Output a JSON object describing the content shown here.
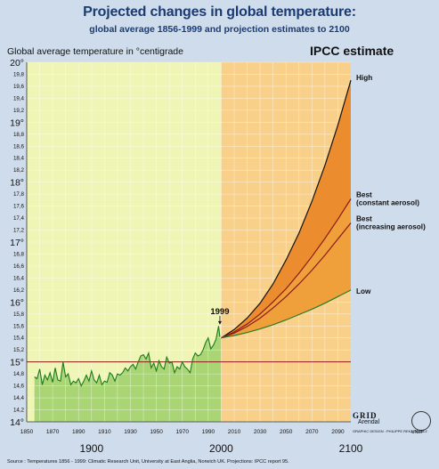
{
  "header": {
    "title": "Projected changes in global temperature:",
    "subtitle": "global average 1856-1999 and projection estimates to 2100",
    "ylabel": "Global average temperature in °centigrade",
    "ipcc_label": "IPCC estimate"
  },
  "footer": {
    "source": "Source : Temperatures 1856 - 1999: Climatic Research Unit, University at East Anglia, Norwich UK. Projections: IPCC report 95."
  },
  "logo": {
    "grid": "GRID",
    "arendal": "Arendal",
    "unep": "UNEP",
    "design": "GRAPHIC DESIGN : PHILIPPE REKACEWICZ"
  },
  "colors": {
    "page_bg": "#cfdcec",
    "historical_bg": "#eff5b4",
    "historical_fill": "#a9d575",
    "historical_line": "#1d7a1d",
    "projection_bg": "#f9d08a",
    "projection_fan": "#f0a03a",
    "projection_fan_upper": "#e8842a",
    "baseline": "#8b1a1a",
    "high_line": "#111111",
    "best_lines": "#8b1a1a",
    "low_line": "#2a7a2a"
  },
  "chart_data": {
    "type": "line",
    "xlabel": "",
    "ylabel": "Global average temperature in °centigrade",
    "xlim": [
      1850,
      2100
    ],
    "ylim": [
      14,
      20
    ],
    "baseline": 15.0,
    "yticks": [
      14,
      14.2,
      14.4,
      14.6,
      14.8,
      15,
      15.2,
      15.4,
      15.6,
      15.8,
      16,
      16.2,
      16.4,
      16.6,
      16.8,
      17,
      17.2,
      17.4,
      17.6,
      17.8,
      18,
      18.2,
      18.4,
      18.6,
      18.8,
      19,
      19.2,
      19.4,
      19.6,
      19.8,
      20
    ],
    "ytick_labels": [
      "14°",
      "14,2",
      "14,4",
      "14,6",
      "14,8",
      "15°",
      "15,2",
      "15,4",
      "15,6",
      "15,8",
      "16°",
      "16,2",
      "16,4",
      "16,6",
      "16,8",
      "17°",
      "17,2",
      "17,4",
      "17,6",
      "17,8",
      "18°",
      "18,2",
      "18,4",
      "18,6",
      "18,8",
      "19°",
      "19,2",
      "19,4",
      "19,6",
      "19,8",
      "20°"
    ],
    "xticks_minor": [
      1850,
      1870,
      1890,
      1910,
      1930,
      1950,
      1970,
      1990,
      2010,
      2030,
      2050,
      2070,
      2090
    ],
    "xticks_major": [
      1900,
      2000,
      2100
    ],
    "annotation": {
      "text": "1999",
      "x": 1999,
      "y": 15.62
    },
    "series": [
      {
        "name": "",
        "role": "historical",
        "x": [
          1856,
          1858,
          1860,
          1862,
          1864,
          1866,
          1868,
          1870,
          1872,
          1874,
          1876,
          1878,
          1880,
          1882,
          1884,
          1886,
          1888,
          1890,
          1892,
          1894,
          1896,
          1898,
          1900,
          1902,
          1904,
          1906,
          1908,
          1910,
          1912,
          1914,
          1916,
          1918,
          1920,
          1922,
          1924,
          1926,
          1928,
          1930,
          1932,
          1934,
          1936,
          1938,
          1940,
          1942,
          1944,
          1946,
          1948,
          1950,
          1952,
          1954,
          1956,
          1958,
          1960,
          1962,
          1964,
          1966,
          1968,
          1970,
          1972,
          1974,
          1976,
          1978,
          1980,
          1982,
          1984,
          1986,
          1988,
          1990,
          1992,
          1994,
          1996,
          1998,
          1999
        ],
        "y": [
          14.75,
          14.72,
          14.88,
          14.62,
          14.78,
          14.7,
          14.82,
          14.66,
          14.9,
          14.7,
          14.68,
          15.0,
          14.75,
          14.8,
          14.62,
          14.68,
          14.65,
          14.72,
          14.6,
          14.68,
          14.78,
          14.68,
          14.85,
          14.7,
          14.65,
          14.78,
          14.62,
          14.68,
          14.66,
          14.82,
          14.78,
          14.68,
          14.8,
          14.78,
          14.82,
          14.9,
          14.85,
          14.92,
          14.96,
          14.88,
          15.0,
          15.1,
          15.12,
          15.05,
          15.15,
          14.9,
          14.98,
          14.85,
          15.02,
          14.92,
          14.88,
          15.08,
          14.98,
          15.0,
          14.82,
          14.92,
          14.88,
          15.0,
          14.92,
          14.88,
          14.82,
          15.05,
          15.15,
          15.1,
          15.12,
          15.2,
          15.32,
          15.4,
          15.22,
          15.28,
          15.38,
          15.6,
          15.42
        ]
      },
      {
        "name": "High",
        "role": "projection",
        "x": [
          2000,
          2010,
          2020,
          2030,
          2040,
          2050,
          2060,
          2070,
          2080,
          2090,
          2100
        ],
        "y": [
          15.4,
          15.54,
          15.73,
          15.98,
          16.3,
          16.7,
          17.15,
          17.68,
          18.28,
          18.95,
          19.7
        ]
      },
      {
        "name": "Best (constant aerosol)",
        "role": "projection",
        "x": [
          2000,
          2010,
          2020,
          2030,
          2040,
          2050,
          2060,
          2070,
          2080,
          2090,
          2100
        ],
        "y": [
          15.4,
          15.5,
          15.63,
          15.8,
          16.0,
          16.22,
          16.48,
          16.76,
          17.06,
          17.38,
          17.72
        ]
      },
      {
        "name": "Best (increasing aerosol)",
        "role": "projection",
        "x": [
          2000,
          2010,
          2020,
          2030,
          2040,
          2050,
          2060,
          2070,
          2080,
          2090,
          2100
        ],
        "y": [
          15.4,
          15.48,
          15.59,
          15.73,
          15.9,
          16.09,
          16.3,
          16.53,
          16.78,
          17.05,
          17.32
        ]
      },
      {
        "name": "Low",
        "role": "projection",
        "x": [
          2000,
          2010,
          2020,
          2030,
          2040,
          2050,
          2060,
          2070,
          2080,
          2090,
          2100
        ],
        "y": [
          15.4,
          15.44,
          15.49,
          15.55,
          15.62,
          15.7,
          15.79,
          15.88,
          15.98,
          16.09,
          16.2
        ]
      }
    ]
  }
}
